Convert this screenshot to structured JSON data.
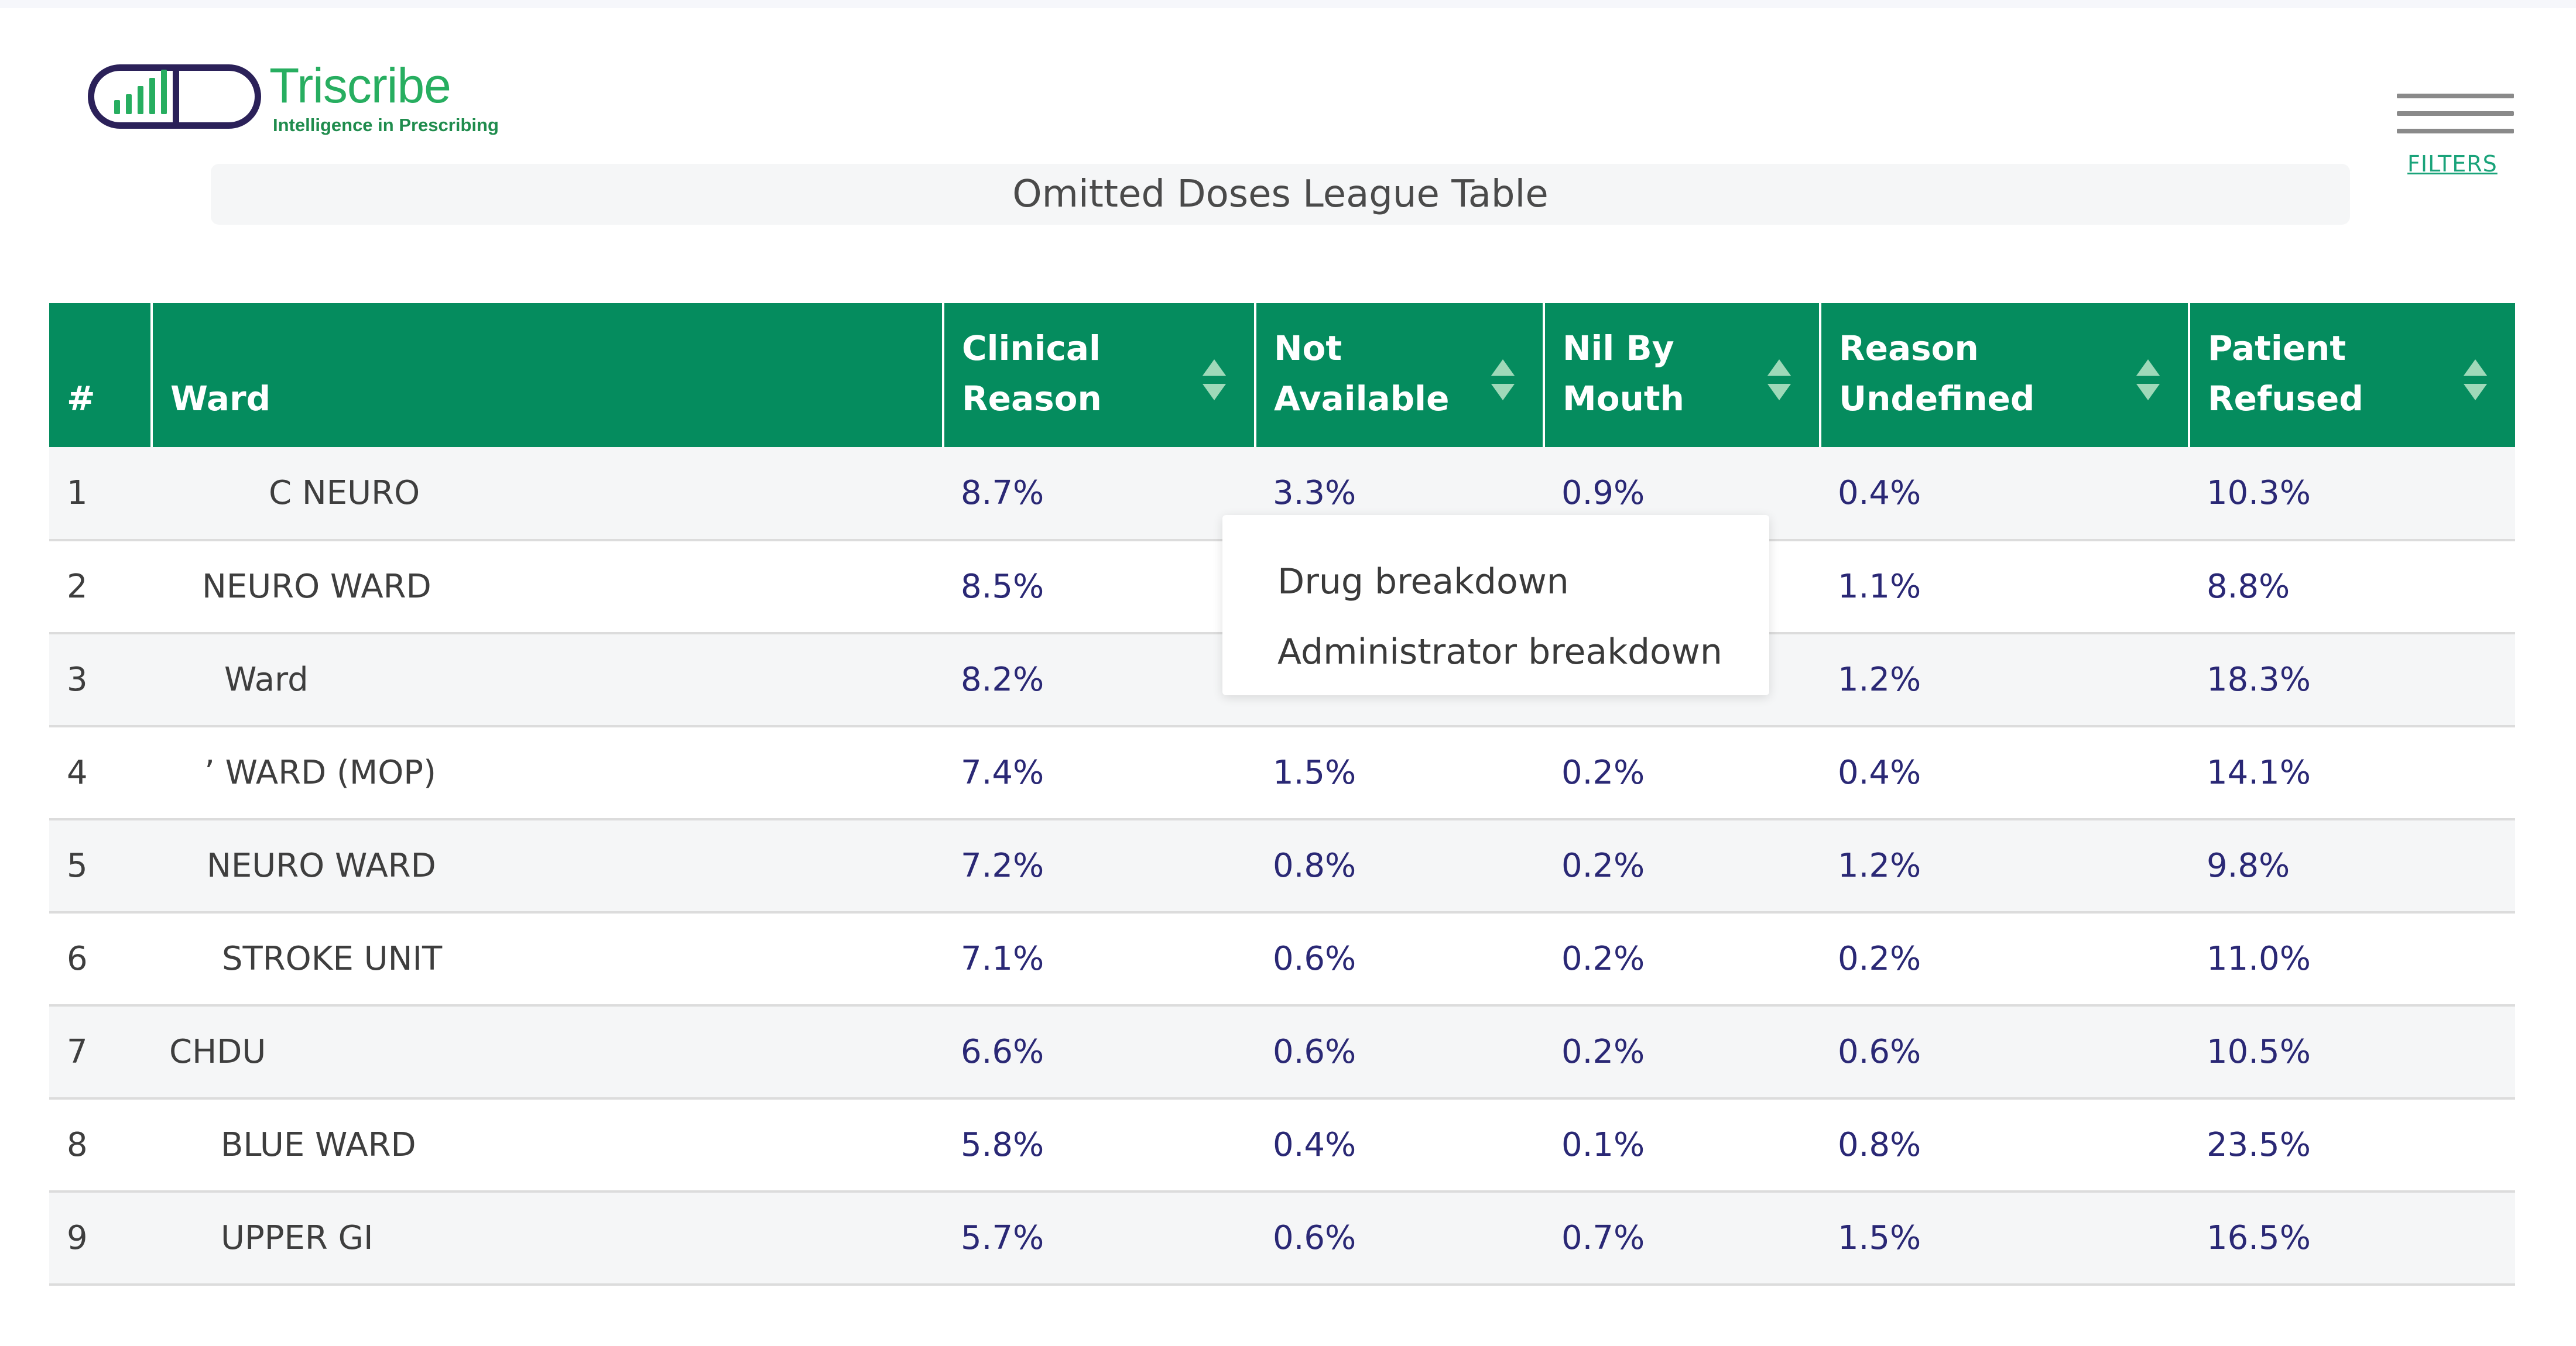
{
  "brand": {
    "name": "Triscribe",
    "tagline": "Intelligence in Prescribing",
    "colors": {
      "primary_green": "#27ae60",
      "dark_purple": "#2b2159",
      "header_green": "#058c5e",
      "value_text": "#2a2875"
    }
  },
  "header": {
    "menu_icon": "hamburger-icon",
    "filters_label": "FILTERS"
  },
  "page": {
    "title": "Omitted Doses League Table"
  },
  "table": {
    "columns": [
      {
        "label": "#",
        "sortable": false
      },
      {
        "label": "Ward",
        "sortable": false
      },
      {
        "label": "Clinical Reason",
        "sortable": true
      },
      {
        "label": "Not Available",
        "sortable": true
      },
      {
        "label": "Nil By Mouth",
        "sortable": true
      },
      {
        "label": "Reason Undefined",
        "sortable": true
      },
      {
        "label": "Patient Refused",
        "sortable": true
      }
    ],
    "rows": [
      {
        "rank": "1",
        "ward": "C NEURO",
        "clinical": "8.7%",
        "not_available": "3.3%",
        "nil_by_mouth": "0.9%",
        "undefined": "0.4%",
        "refused": "10.3%"
      },
      {
        "rank": "2",
        "ward": "NEURO WARD",
        "clinical": "8.5%",
        "not_available": "",
        "nil_by_mouth": "",
        "undefined": "1.1%",
        "refused": "8.8%"
      },
      {
        "rank": "3",
        "ward": "Ward",
        "clinical": "8.2%",
        "not_available": "",
        "nil_by_mouth": "",
        "undefined": "1.2%",
        "refused": "18.3%"
      },
      {
        "rank": "4",
        "ward": "’ WARD (MOP)",
        "clinical": "7.4%",
        "not_available": "1.5%",
        "nil_by_mouth": "0.2%",
        "undefined": "0.4%",
        "refused": "14.1%"
      },
      {
        "rank": "5",
        "ward": "NEURO WARD",
        "clinical": "7.2%",
        "not_available": "0.8%",
        "nil_by_mouth": "0.2%",
        "undefined": "1.2%",
        "refused": "9.8%"
      },
      {
        "rank": "6",
        "ward": "STROKE UNIT",
        "clinical": "7.1%",
        "not_available": "0.6%",
        "nil_by_mouth": "0.2%",
        "undefined": "0.2%",
        "refused": "11.0%"
      },
      {
        "rank": "7",
        "ward": "CHDU",
        "clinical": "6.6%",
        "not_available": "0.6%",
        "nil_by_mouth": "0.2%",
        "undefined": "0.6%",
        "refused": "10.5%"
      },
      {
        "rank": "8",
        "ward": "BLUE WARD",
        "clinical": "5.8%",
        "not_available": "0.4%",
        "nil_by_mouth": "0.1%",
        "undefined": "0.8%",
        "refused": "23.5%"
      },
      {
        "rank": "9",
        "ward": "UPPER GI",
        "clinical": "5.7%",
        "not_available": "0.6%",
        "nil_by_mouth": "0.7%",
        "undefined": "1.5%",
        "refused": "16.5%"
      }
    ]
  },
  "context_menu": {
    "items": [
      "Drug breakdown",
      "Administrator breakdown"
    ]
  }
}
